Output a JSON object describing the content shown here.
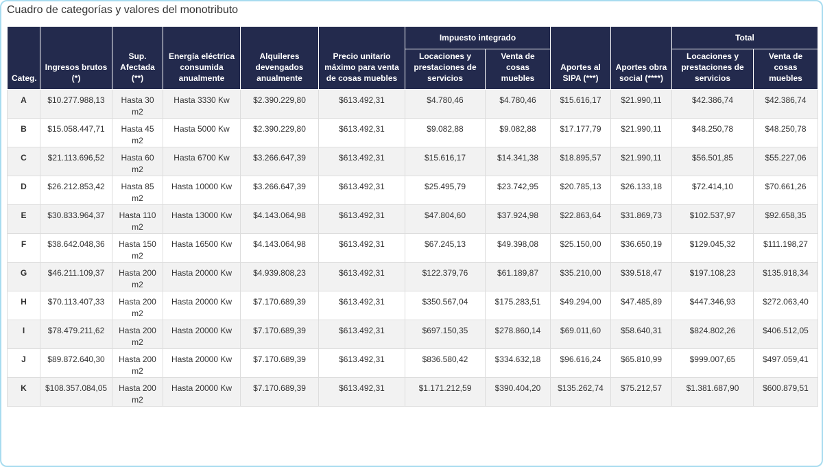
{
  "title": "Cuadro de categorías y valores del monotributo",
  "headers": {
    "categ": "Categ.",
    "ingresos": "Ingresos brutos (*)",
    "sup": "Sup. Afectada (**)",
    "energia": "Energía eléctrica consumida anualmente",
    "alquileres": "Alquileres devengados anualmente",
    "precio": "Precio unitario máximo para venta de cosas muebles",
    "impuesto_group": "Impuesto integrado",
    "imp_locaciones": "Locaciones y prestaciones de servicios",
    "imp_venta": "Venta de cosas muebles",
    "sipa": "Aportes al SIPA (***)",
    "obra": "Aportes obra social (****)",
    "total_group": "Total",
    "tot_locaciones": "Locaciones y prestaciones de servicios",
    "tot_venta": "Venta de cosas muebles"
  },
  "rows": [
    {
      "cat": "A",
      "ingresos": "$10.277.988,13",
      "sup": "Hasta 30 m2",
      "energia": "Hasta 3330 Kw",
      "alquileres": "$2.390.229,80",
      "precio": "$613.492,31",
      "imp_loc": "$4.780,46",
      "imp_venta": "$4.780,46",
      "sipa": "$15.616,17",
      "obra": "$21.990,11",
      "tot_loc": "$42.386,74",
      "tot_venta": "$42.386,74"
    },
    {
      "cat": "B",
      "ingresos": "$15.058.447,71",
      "sup": "Hasta 45 m2",
      "energia": "Hasta 5000 Kw",
      "alquileres": "$2.390.229,80",
      "precio": "$613.492,31",
      "imp_loc": "$9.082,88",
      "imp_venta": "$9.082,88",
      "sipa": "$17.177,79",
      "obra": "$21.990,11",
      "tot_loc": "$48.250,78",
      "tot_venta": "$48.250,78"
    },
    {
      "cat": "C",
      "ingresos": "$21.113.696,52",
      "sup": "Hasta 60 m2",
      "energia": "Hasta 6700 Kw",
      "alquileres": "$3.266.647,39",
      "precio": "$613.492,31",
      "imp_loc": "$15.616,17",
      "imp_venta": "$14.341,38",
      "sipa": "$18.895,57",
      "obra": "$21.990,11",
      "tot_loc": "$56.501,85",
      "tot_venta": "$55.227,06"
    },
    {
      "cat": "D",
      "ingresos": "$26.212.853,42",
      "sup": "Hasta 85 m2",
      "energia": "Hasta 10000 Kw",
      "alquileres": "$3.266.647,39",
      "precio": "$613.492,31",
      "imp_loc": "$25.495,79",
      "imp_venta": "$23.742,95",
      "sipa": "$20.785,13",
      "obra": "$26.133,18",
      "tot_loc": "$72.414,10",
      "tot_venta": "$70.661,26"
    },
    {
      "cat": "E",
      "ingresos": "$30.833.964,37",
      "sup": "Hasta 110 m2",
      "energia": "Hasta 13000 Kw",
      "alquileres": "$4.143.064,98",
      "precio": "$613.492,31",
      "imp_loc": "$47.804,60",
      "imp_venta": "$37.924,98",
      "sipa": "$22.863,64",
      "obra": "$31.869,73",
      "tot_loc": "$102.537,97",
      "tot_venta": "$92.658,35"
    },
    {
      "cat": "F",
      "ingresos": "$38.642.048,36",
      "sup": "Hasta 150 m2",
      "energia": "Hasta 16500 Kw",
      "alquileres": "$4.143.064,98",
      "precio": "$613.492,31",
      "imp_loc": "$67.245,13",
      "imp_venta": "$49.398,08",
      "sipa": "$25.150,00",
      "obra": "$36.650,19",
      "tot_loc": "$129.045,32",
      "tot_venta": "$111.198,27"
    },
    {
      "cat": "G",
      "ingresos": "$46.211.109,37",
      "sup": "Hasta 200 m2",
      "energia": "Hasta 20000 Kw",
      "alquileres": "$4.939.808,23",
      "precio": "$613.492,31",
      "imp_loc": "$122.379,76",
      "imp_venta": "$61.189,87",
      "sipa": "$35.210,00",
      "obra": "$39.518,47",
      "tot_loc": "$197.108,23",
      "tot_venta": "$135.918,34"
    },
    {
      "cat": "H",
      "ingresos": "$70.113.407,33",
      "sup": "Hasta 200 m2",
      "energia": "Hasta 20000 Kw",
      "alquileres": "$7.170.689,39",
      "precio": "$613.492,31",
      "imp_loc": "$350.567,04",
      "imp_venta": "$175.283,51",
      "sipa": "$49.294,00",
      "obra": "$47.485,89",
      "tot_loc": "$447.346,93",
      "tot_venta": "$272.063,40"
    },
    {
      "cat": "I",
      "ingresos": "$78.479.211,62",
      "sup": "Hasta 200 m2",
      "energia": "Hasta 20000 Kw",
      "alquileres": "$7.170.689,39",
      "precio": "$613.492,31",
      "imp_loc": "$697.150,35",
      "imp_venta": "$278.860,14",
      "sipa": "$69.011,60",
      "obra": "$58.640,31",
      "tot_loc": "$824.802,26",
      "tot_venta": "$406.512,05"
    },
    {
      "cat": "J",
      "ingresos": "$89.872.640,30",
      "sup": "Hasta 200 m2",
      "energia": "Hasta 20000 Kw",
      "alquileres": "$7.170.689,39",
      "precio": "$613.492,31",
      "imp_loc": "$836.580,42",
      "imp_venta": "$334.632,18",
      "sipa": "$96.616,24",
      "obra": "$65.810,99",
      "tot_loc": "$999.007,65",
      "tot_venta": "$497.059,41"
    },
    {
      "cat": "K",
      "ingresos": "$108.357.084,05",
      "sup": "Hasta 200 m2",
      "energia": "Hasta 20000 Kw",
      "alquileres": "$7.170.689,39",
      "precio": "$613.492,31",
      "imp_loc": "$1.171.212,59",
      "imp_venta": "$390.404,20",
      "sipa": "$135.262,74",
      "obra": "$75.212,57",
      "tot_loc": "$1.381.687,90",
      "tot_venta": "$600.879,51"
    }
  ]
}
